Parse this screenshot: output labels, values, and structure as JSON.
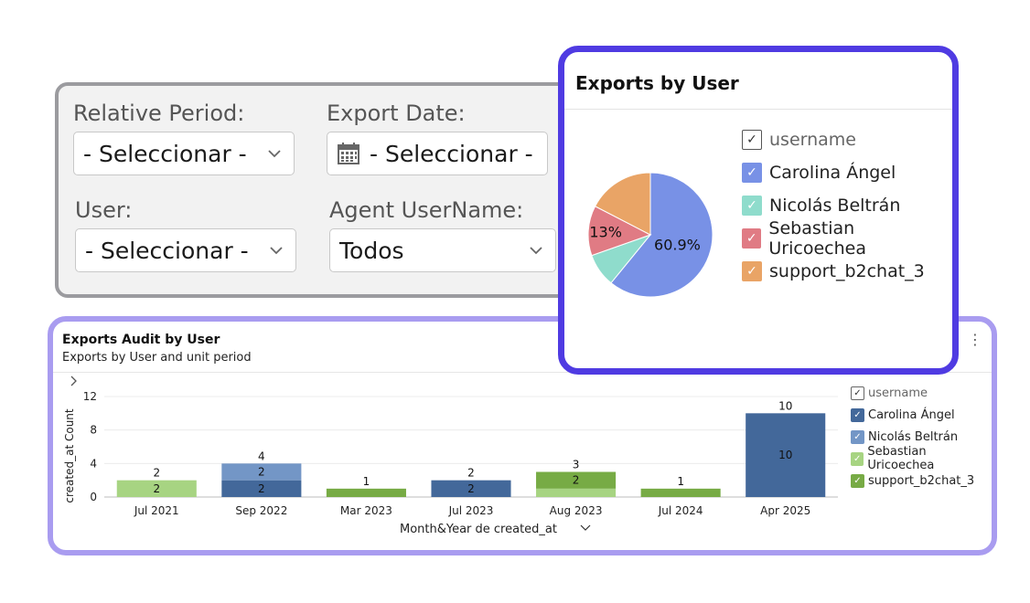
{
  "filters": {
    "relative_period": {
      "label": "Relative Period:",
      "value": "- Seleccionar -"
    },
    "export_date": {
      "label": "Export Date:",
      "value": "- Seleccionar -"
    },
    "user": {
      "label": "User:",
      "value": "- Seleccionar -"
    },
    "agent_username": {
      "label": "Agent UserName:",
      "value": "Todos"
    }
  },
  "pie_card": {
    "title": "Exports by User",
    "legend_header": "username",
    "legend": [
      {
        "label": "Carolina Ángel",
        "color": "#7891e6"
      },
      {
        "label": "Nicolás Beltrán",
        "color": "#8fdccc"
      },
      {
        "label": "Sebastian Uricoechea",
        "color": "#e07b84"
      },
      {
        "label": "support_b2chat_3",
        "color": "#e9a466"
      }
    ],
    "check_glyph": "✓"
  },
  "audit_card": {
    "title": "Exports Audit by User",
    "subtitle": "Exports by User and unit period",
    "menu_glyph": "⋮",
    "legend_header": "username",
    "legend": [
      {
        "label": "Carolina Ángel",
        "color": "#43689a"
      },
      {
        "label": "Nicolás Beltrán",
        "color": "#7396c6"
      },
      {
        "label": "Sebastian Uricoechea",
        "color": "#a7d482"
      },
      {
        "label": "support_b2chat_3",
        "color": "#77ab45"
      }
    ],
    "check_glyph": "✓"
  },
  "chart_data": [
    {
      "type": "pie",
      "title": "Exports by User",
      "legend_title": "username",
      "series": [
        {
          "name": "Carolina Ángel",
          "value": 60.9,
          "label": "60.9%",
          "color": "#7891e6"
        },
        {
          "name": "Nicolás Beltrán",
          "value": 8.7,
          "color": "#8fdccc"
        },
        {
          "name": "Sebastian Uricoechea",
          "value": 13,
          "label": "13%",
          "color": "#e07b84"
        },
        {
          "name": "support_b2chat_3",
          "value": 17.4,
          "color": "#e9a466"
        }
      ]
    },
    {
      "type": "bar",
      "stacked": true,
      "title": "Exports Audit by User",
      "subtitle": "Exports by User and unit period",
      "xlabel": "Month&Year de created_at",
      "ylabel": "created_at Count",
      "ylim": [
        0,
        12
      ],
      "yticks": [
        0,
        4,
        8,
        12
      ],
      "categories": [
        "Jul 2021",
        "Sep 2022",
        "Mar 2023",
        "Jul 2023",
        "Aug 2023",
        "Jul 2024",
        "Apr 2025"
      ],
      "series": [
        {
          "name": "Carolina Ángel",
          "color": "#43689a",
          "values": [
            0,
            2,
            0,
            2,
            0,
            0,
            10
          ]
        },
        {
          "name": "Nicolás Beltrán",
          "color": "#7396c6",
          "values": [
            0,
            2,
            0,
            0,
            0,
            0,
            0
          ]
        },
        {
          "name": "Sebastian Uricoechea",
          "color": "#a7d482",
          "values": [
            2,
            0,
            0,
            0,
            1,
            0,
            0
          ]
        },
        {
          "name": "support_b2chat_3",
          "color": "#77ab45",
          "values": [
            0,
            0,
            1,
            0,
            2,
            1,
            0
          ]
        }
      ],
      "totals": [
        2,
        4,
        1,
        2,
        3,
        1,
        10
      ],
      "segment_labels": [
        {
          "category": 0,
          "series": 2,
          "text": "2"
        },
        {
          "category": 1,
          "series": 0,
          "text": "2"
        },
        {
          "category": 1,
          "series": 1,
          "text": "2"
        },
        {
          "category": 3,
          "series": 0,
          "text": "2"
        },
        {
          "category": 4,
          "series": 3,
          "text": "2"
        },
        {
          "category": 6,
          "series": 0,
          "text": "10"
        }
      ]
    }
  ]
}
